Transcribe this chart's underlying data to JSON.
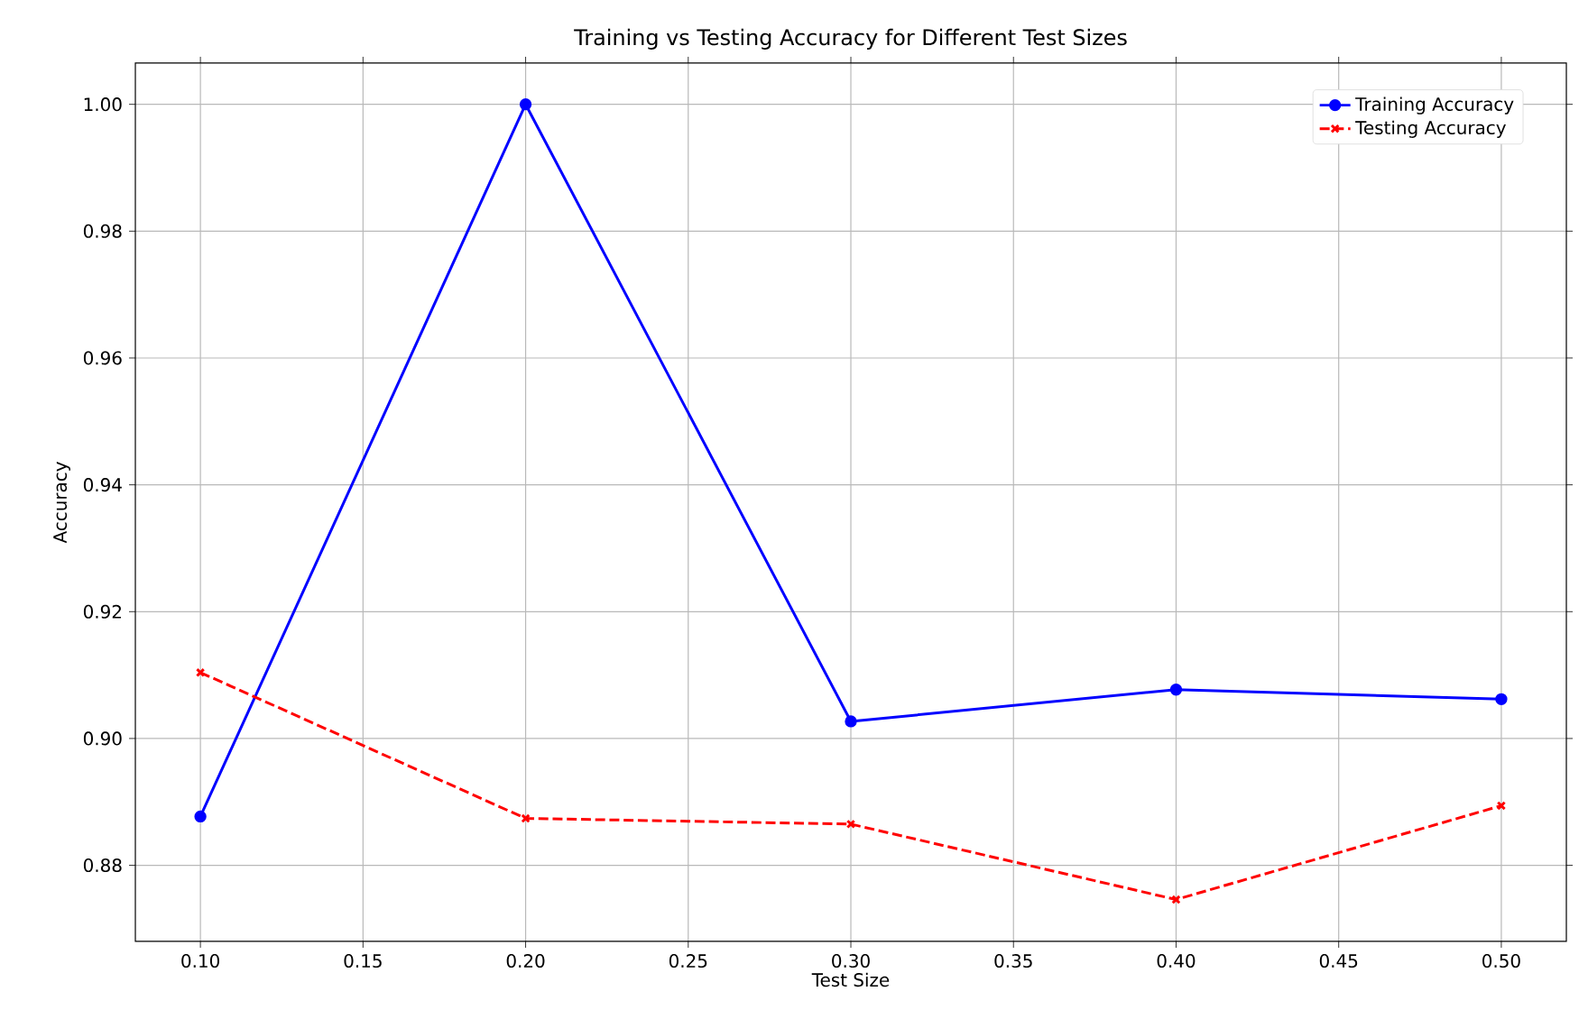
{
  "chart_data": {
    "type": "line",
    "title": "Training vs Testing Accuracy for Different Test Sizes",
    "xlabel": "Test Size",
    "ylabel": "Accuracy",
    "x": [
      0.1,
      0.2,
      0.3,
      0.4,
      0.5
    ],
    "series": [
      {
        "name": "Training Accuracy",
        "color": "#0000ff",
        "values": [
          0.8877,
          1.0,
          0.9027,
          0.9077,
          0.9062
        ],
        "marker": "circle",
        "line_style": "solid"
      },
      {
        "name": "Testing Accuracy",
        "color": "#ff0000",
        "values": [
          0.9104,
          0.8874,
          0.8865,
          0.8746,
          0.8894
        ],
        "marker": "cross",
        "line_style": "dashed"
      }
    ],
    "xlim": [
      0.08,
      0.52
    ],
    "xticks": [
      {
        "value": 0.1,
        "label": "0.10"
      },
      0.15,
      {
        "value": 0.2,
        "label": "0.20"
      },
      0.25,
      {
        "value": 0.3,
        "label": "0.30"
      },
      0.35,
      {
        "value": 0.4,
        "label": "0.40"
      },
      0.45,
      {
        "value": 0.5,
        "label": "0.50"
      }
    ],
    "ylim": [
      0.868,
      1.0065
    ],
    "yticks": [
      0.88,
      {
        "value": 0.9,
        "label": "0.90"
      },
      0.92,
      0.94,
      0.96,
      0.98,
      {
        "value": 1.0,
        "label": "1.00"
      }
    ],
    "grid": true,
    "legend": "top right"
  }
}
